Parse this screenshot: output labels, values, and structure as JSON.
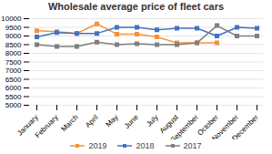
{
  "chart_data": {
    "type": "line",
    "title": "Wholesale average price of fleet cars",
    "categories": [
      "January",
      "February",
      "March",
      "April",
      "May",
      "June",
      "July",
      "August",
      "September",
      "October",
      "November",
      "December"
    ],
    "series": [
      {
        "name": "2019",
        "color": "#f4923a",
        "marker": "square",
        "values": [
          9300,
          9250,
          9150,
          9700,
          9100,
          9100,
          8950,
          8600,
          8600,
          8600,
          null,
          null
        ]
      },
      {
        "name": "2018",
        "color": "#4472c4",
        "marker": "square",
        "values": [
          8950,
          9200,
          9150,
          9150,
          9500,
          9500,
          9350,
          9450,
          9450,
          9000,
          9500,
          9450
        ]
      },
      {
        "name": "2017",
        "color": "#7f7f7f",
        "marker": "square",
        "values": [
          8500,
          8400,
          8400,
          8650,
          8500,
          8550,
          8500,
          8500,
          8600,
          9600,
          9000,
          9000
        ]
      }
    ],
    "ylim": [
      5000,
      10000
    ],
    "yticks": [
      5000,
      5500,
      6000,
      6500,
      7000,
      7500,
      8000,
      8500,
      9000,
      9500,
      10000
    ],
    "grid": true,
    "legend": "bottom"
  }
}
